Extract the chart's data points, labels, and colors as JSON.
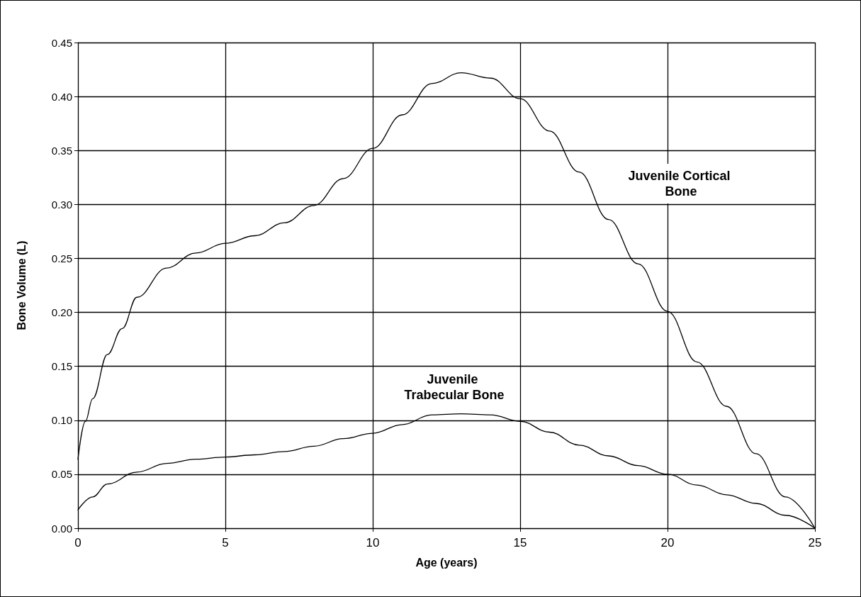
{
  "chart_data": {
    "type": "line",
    "xlabel": "Age (years)",
    "ylabel": "Bone Volume (L)",
    "xlim": [
      0,
      25
    ],
    "xticks": [
      0,
      5,
      10,
      15,
      20,
      25
    ],
    "ylim": [
      0,
      0.45
    ],
    "yticks": [
      {
        "value": 0,
        "label": "0.00"
      },
      0.05,
      {
        "value": 0.1,
        "label": "0.10"
      },
      0.15,
      {
        "value": 0.2,
        "label": "0.20"
      },
      0.25,
      {
        "value": 0.3,
        "label": "0.30"
      },
      0.35,
      {
        "value": 0.4,
        "label": "0.40"
      },
      0.45
    ],
    "grid": true,
    "marker": "none",
    "line_style": "solid",
    "series": [
      {
        "color": "#000000",
        "x": [
          0,
          0.25,
          0.5,
          1,
          1.5,
          2,
          3,
          4,
          5,
          6,
          7,
          8,
          9,
          10,
          11,
          12,
          13,
          14,
          15,
          16,
          17,
          18,
          19,
          20,
          21,
          22,
          23,
          24,
          25
        ],
        "values": [
          0.064,
          0.099,
          0.12,
          0.161,
          0.185,
          0.214,
          0.241,
          0.255,
          0.264,
          0.271,
          0.283,
          0.299,
          0.324,
          0.352,
          0.383,
          0.412,
          0.422,
          0.417,
          0.398,
          0.368,
          0.33,
          0.286,
          0.245,
          0.201,
          0.154,
          0.113,
          0.069,
          0.029,
          0
        ]
      },
      {
        "color": "#000000",
        "x": [
          0,
          0.5,
          1,
          2,
          3,
          4,
          5,
          6,
          7,
          8,
          9,
          10,
          11,
          12,
          13,
          14,
          15,
          16,
          17,
          18,
          19,
          20,
          21,
          22,
          23,
          24,
          25
        ],
        "values": [
          0.017,
          0.029,
          0.041,
          0.052,
          0.06,
          0.064,
          0.066,
          0.068,
          0.071,
          0.076,
          0.083,
          0.088,
          0.096,
          0.105,
          0.106,
          0.105,
          0.099,
          0.089,
          0.077,
          0.067,
          0.058,
          0.05,
          0.04,
          0.031,
          0.023,
          0.012,
          0
        ]
      }
    ],
    "annotations": [
      "Juvenile Cortical Bone",
      "Juvenile Trabecular Bone"
    ]
  }
}
